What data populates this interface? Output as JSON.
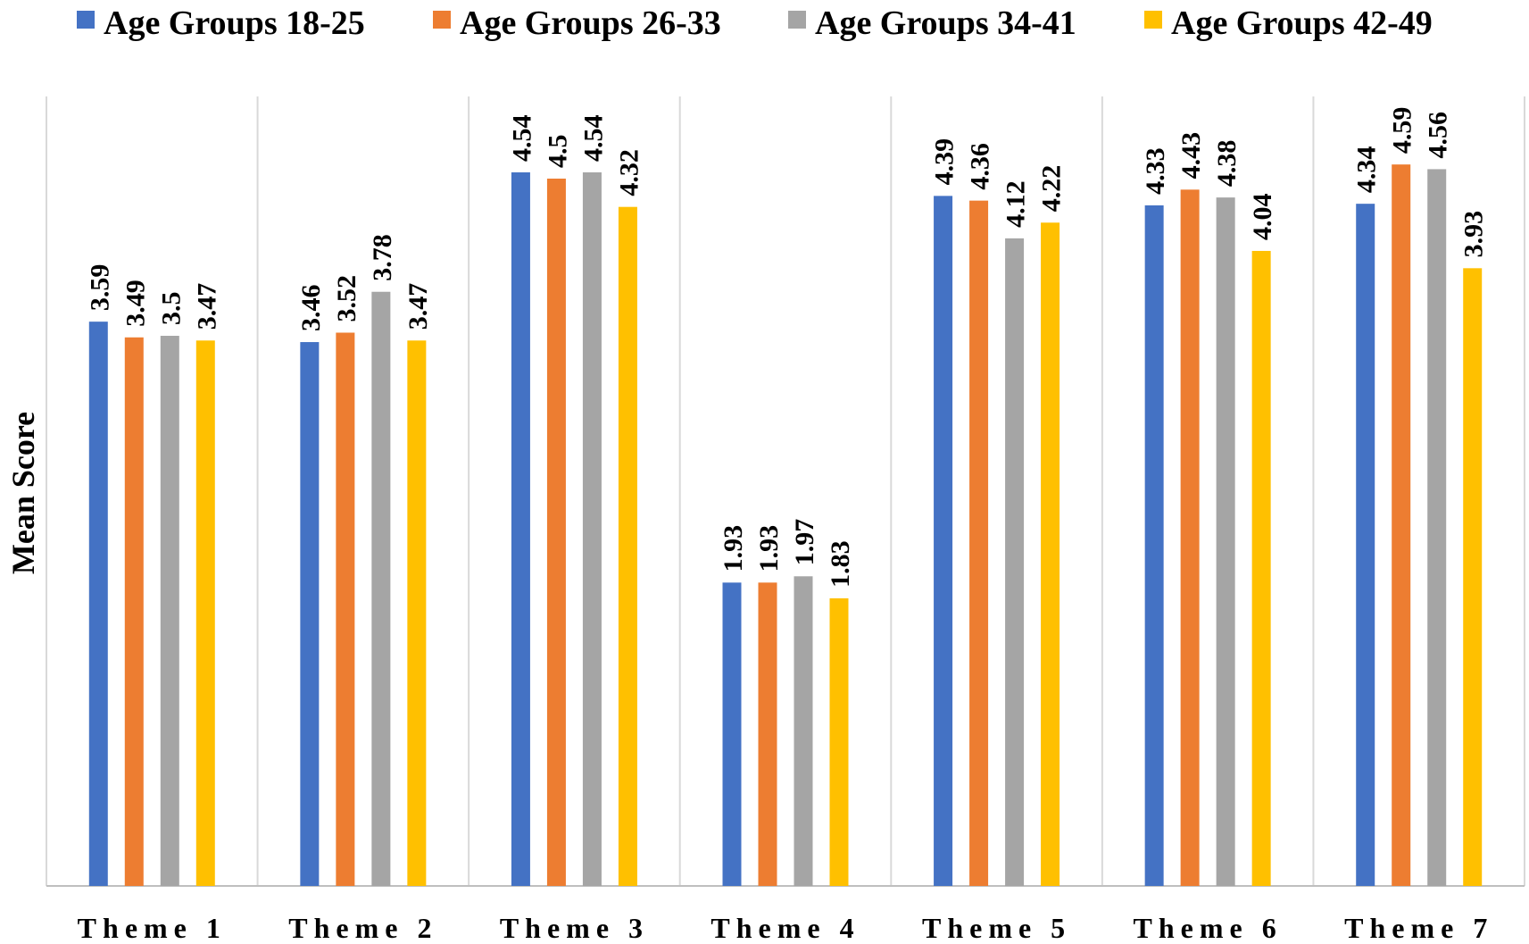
{
  "chart_data": {
    "type": "bar",
    "title": "",
    "xlabel": "",
    "ylabel": "Mean Score",
    "ylim": [
      0,
      5
    ],
    "grid": "vertical separators between categories",
    "legend_position": "top",
    "categories": [
      "Theme 1",
      "Theme 2",
      "Theme 3",
      "Theme 4",
      "Theme 5",
      "Theme 6",
      "Theme 7"
    ],
    "series": [
      {
        "name": "Age Groups 18-25",
        "color": "#4472C4",
        "values": [
          3.59,
          3.46,
          4.54,
          1.93,
          4.39,
          4.33,
          4.34
        ]
      },
      {
        "name": "Age Groups 26-33",
        "color": "#ED7D31",
        "values": [
          3.49,
          3.52,
          4.5,
          1.93,
          4.36,
          4.43,
          4.59
        ]
      },
      {
        "name": "Age Groups 34-41",
        "color": "#A5A5A5",
        "values": [
          3.5,
          3.78,
          4.54,
          1.97,
          4.12,
          4.38,
          4.56
        ]
      },
      {
        "name": "Age Groups 42-49",
        "color": "#FFC000",
        "values": [
          3.47,
          3.47,
          4.32,
          1.83,
          4.22,
          4.04,
          3.93
        ]
      }
    ]
  }
}
